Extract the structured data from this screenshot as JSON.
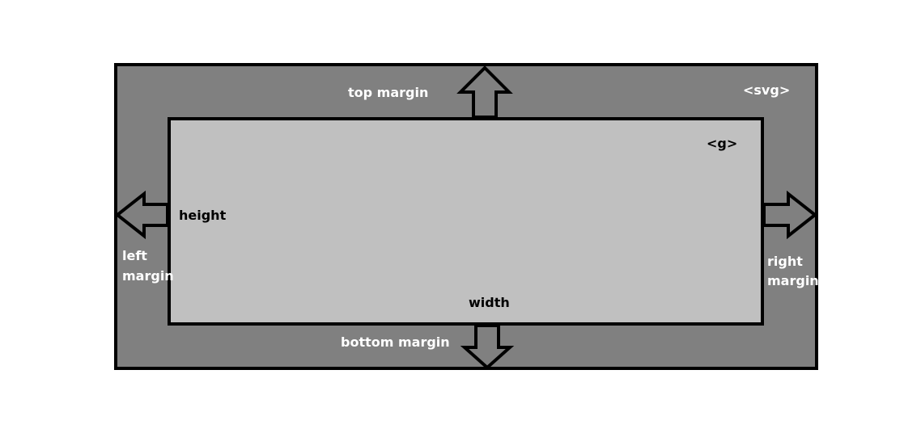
{
  "colors": {
    "outer_fill": "#808080",
    "inner_fill": "#c0c0c0",
    "stroke": "#000000",
    "outer_text": "#ffffff",
    "inner_text": "#000000"
  },
  "labels": {
    "svg_tag": "<svg>",
    "g_tag": "<g>",
    "top_margin": "top margin",
    "bottom_margin": "bottom margin",
    "left_margin_line1": "left",
    "left_margin_line2": "margin",
    "right_margin_line1": "right",
    "right_margin_line2": "margin",
    "height": "height",
    "width": "width"
  },
  "icons": [
    "arrow-up-icon",
    "arrow-down-icon",
    "arrow-left-icon",
    "arrow-right-icon"
  ]
}
